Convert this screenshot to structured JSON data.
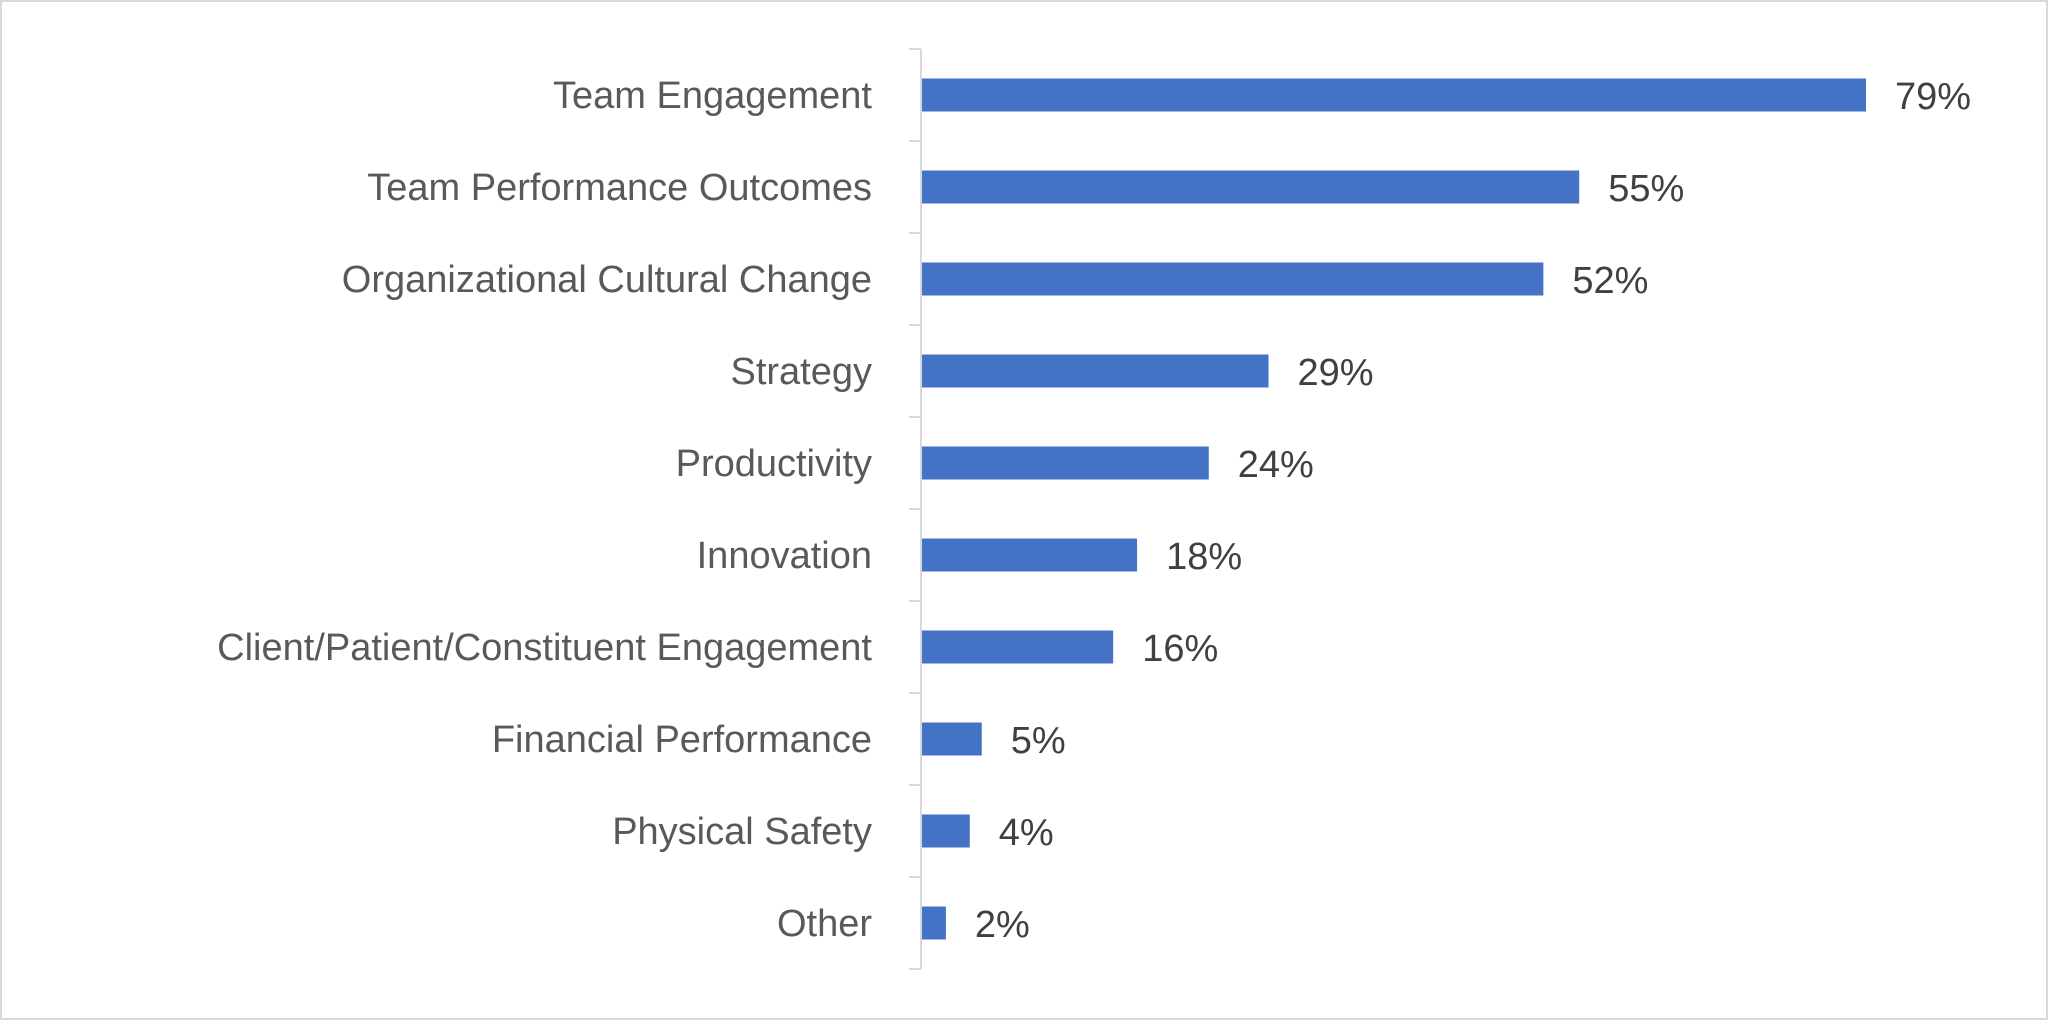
{
  "chart_data": {
    "type": "bar",
    "orientation": "horizontal",
    "title": "",
    "xlabel": "",
    "ylabel": "",
    "categories": [
      "Team Engagement",
      "Team Performance Outcomes",
      "Organizational Cultural Change",
      "Strategy",
      "Productivity",
      "Innovation",
      "Client/Patient/Constituent Engagement",
      "Financial Performance",
      "Physical Safety",
      "Other"
    ],
    "values": [
      79,
      55,
      52,
      29,
      24,
      18,
      16,
      5,
      4,
      2
    ],
    "data_labels": [
      "79%",
      "55%",
      "52%",
      "29%",
      "24%",
      "18%",
      "16%",
      "5%",
      "4%",
      "2%"
    ],
    "unit": "%",
    "xlim": [
      0,
      100
    ],
    "grid": false,
    "legend": "none",
    "colors": {
      "bar": "#4472c4",
      "label": "#595959",
      "axis": "#d9d9d9"
    }
  }
}
